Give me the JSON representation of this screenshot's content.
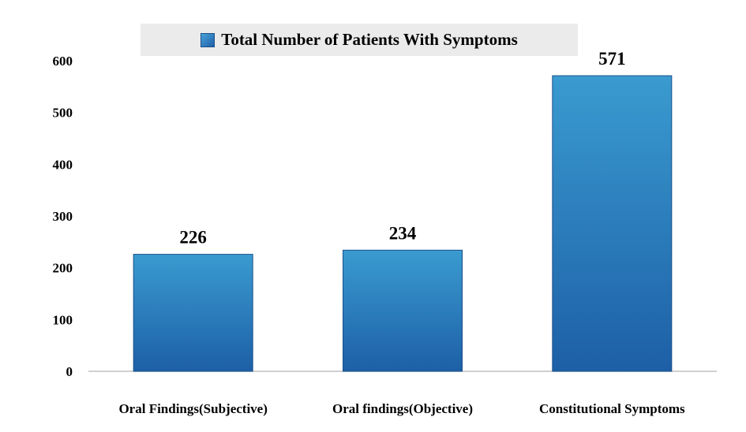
{
  "chart_data": {
    "type": "bar",
    "title": "",
    "legend": [
      "Total Number of Patients With Symptoms"
    ],
    "legend_position": "top",
    "categories": [
      "Oral Findings(Subjective)",
      "Oral findings(Objective)",
      "Constitutional Symptoms"
    ],
    "series": [
      {
        "name": "Total Number of Patients With Symptoms",
        "values": [
          226,
          234,
          571
        ]
      }
    ],
    "data_labels": [
      "226",
      "234",
      "571"
    ],
    "xlabel": "",
    "ylabel": "",
    "ylim": [
      0,
      600
    ],
    "yticks": [
      0,
      100,
      200,
      300,
      400,
      500,
      600
    ],
    "grid": false,
    "colors": {
      "bar_light": "#3a9bd0",
      "bar_dark": "#1d5fa6"
    }
  }
}
